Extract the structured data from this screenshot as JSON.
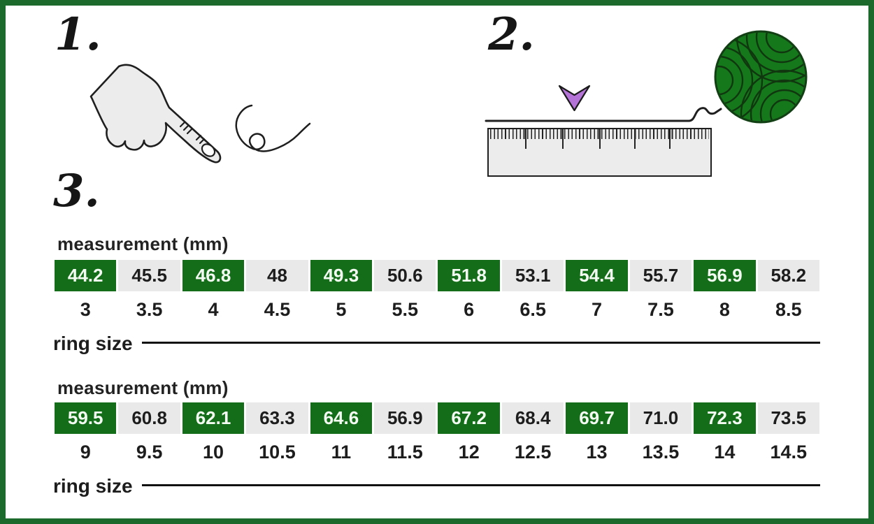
{
  "steps": [
    {
      "number": "1."
    },
    {
      "number": "2."
    },
    {
      "number": "3."
    }
  ],
  "tables": [
    {
      "header": "measurement (mm)",
      "footer_label": "ring size",
      "measurements": [
        "44.2",
        "45.5",
        "46.8",
        "48",
        "49.3",
        "50.6",
        "51.8",
        "53.1",
        "54.4",
        "55.7",
        "56.9",
        "58.2"
      ],
      "ring_sizes": [
        "3",
        "3.5",
        "4",
        "4.5",
        "5",
        "5.5",
        "6",
        "6.5",
        "7",
        "7.5",
        "8",
        "8.5"
      ]
    },
    {
      "header": "measurement (mm)",
      "footer_label": "ring size",
      "measurements": [
        "59.5",
        "60.8",
        "62.1",
        "63.3",
        "64.6",
        "56.9",
        "67.2",
        "68.4",
        "69.7",
        "71.0",
        "72.3",
        "73.5"
      ],
      "ring_sizes": [
        "9",
        "9.5",
        "10",
        "10.5",
        "11",
        "11.5",
        "12",
        "12.5",
        "13",
        "13.5",
        "14",
        "14.5"
      ]
    }
  ],
  "illustrations": {
    "step1": [
      "pointing-hand-icon",
      "string-loop-icon"
    ],
    "step2": [
      "down-arrow-icon",
      "thread-icon",
      "ruler-icon",
      "yarn-ball-icon"
    ]
  },
  "colors": {
    "frame_green": "#1c6b2d",
    "cell_green": "#146e19",
    "cell_gray": "#e9e9e9",
    "yarn_green": "#15791b",
    "arrow_purple": "#b473d6",
    "line_black": "#111111"
  }
}
